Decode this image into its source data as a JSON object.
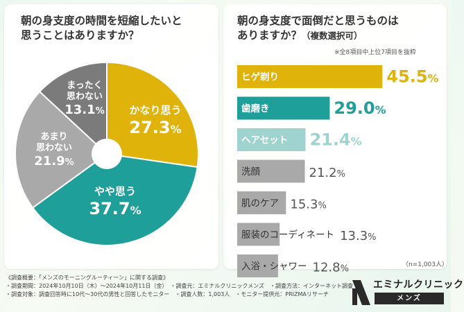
{
  "left_title": [
    "朝の身支度の時間を短縮したいと",
    "思うことはありますか？"
  ],
  "right_title_line1": "朝の身支度で面倒だと思うものは",
  "right_title_line2": "ありますか？",
  "right_title_sub": "（複数選択可）",
  "right_note": "※全8項目中上位7項目を抜粋",
  "sample_note": "（n=1,003人）",
  "colors": {
    "gold": "#e0b30a",
    "teal": "#1e9f99",
    "light_teal": "#9fd3cf",
    "gray": "#a9a9a9",
    "dark_gray": "#7b7b7b",
    "value_gray": "#555555"
  },
  "chart_data": [
    {
      "type": "pie",
      "title": "朝の身支度の時間を短縮したいと思うことはありますか？",
      "slices": [
        {
          "label": "かなり思う",
          "lines": [
            "かなり思う"
          ],
          "value": 27.3,
          "color": "#e0b30a"
        },
        {
          "label": "やや思う",
          "lines": [
            "やや思う"
          ],
          "value": 37.7,
          "color": "#1e9f99"
        },
        {
          "label": "あまり思わない",
          "lines": [
            "あまり",
            "思わない"
          ],
          "value": 21.9,
          "color": "#a9a9a9"
        },
        {
          "label": "まったく思わない",
          "lines": [
            "まったく",
            "思わない"
          ],
          "value": 13.1,
          "color": "#7b7b7b"
        }
      ],
      "unit": "%"
    },
    {
      "type": "bar",
      "title": "朝の身支度で面倒だと思うものはありますか？（複数選択可）",
      "orientation": "horizontal",
      "categories": [
        "ヒゲ剃り",
        "歯磨き",
        "ヘアセット",
        "洗顔",
        "肌のケア",
        "服装のコーディネート",
        "入浴・シャワー"
      ],
      "values": [
        45.5,
        29.0,
        21.4,
        21.2,
        15.3,
        13.3,
        12.8
      ],
      "bar_colors": [
        "#e0b30a",
        "#1e9f99",
        "#9fd3cf",
        "#a9a9a9",
        "#a9a9a9",
        "#a9a9a9",
        "#a9a9a9"
      ],
      "value_colors": [
        "#e0b30a",
        "#1e9f99",
        "#9fd3cf",
        "#555555",
        "#555555",
        "#555555",
        "#555555"
      ],
      "unit": "%",
      "xlim": [
        0,
        50
      ]
    }
  ],
  "footer": {
    "lines": [
      "《調査概要：「メンズのモーニングルーティーン」に関する調査》",
      "・調査期間：2024年10月10日（木）～2024年10月11日（金）　・調査元：エミナルクリニックメンズ　・調査方法：インターネット調査",
      "・調査対象：調査回答時に10代～30代の男性と回答したモニター　・調査人数：1,003人　・モニター提供元：PRIZMAリサーチ"
    ]
  },
  "logo": {
    "name": "エミナルクリニック",
    "sub": "メンズ"
  }
}
